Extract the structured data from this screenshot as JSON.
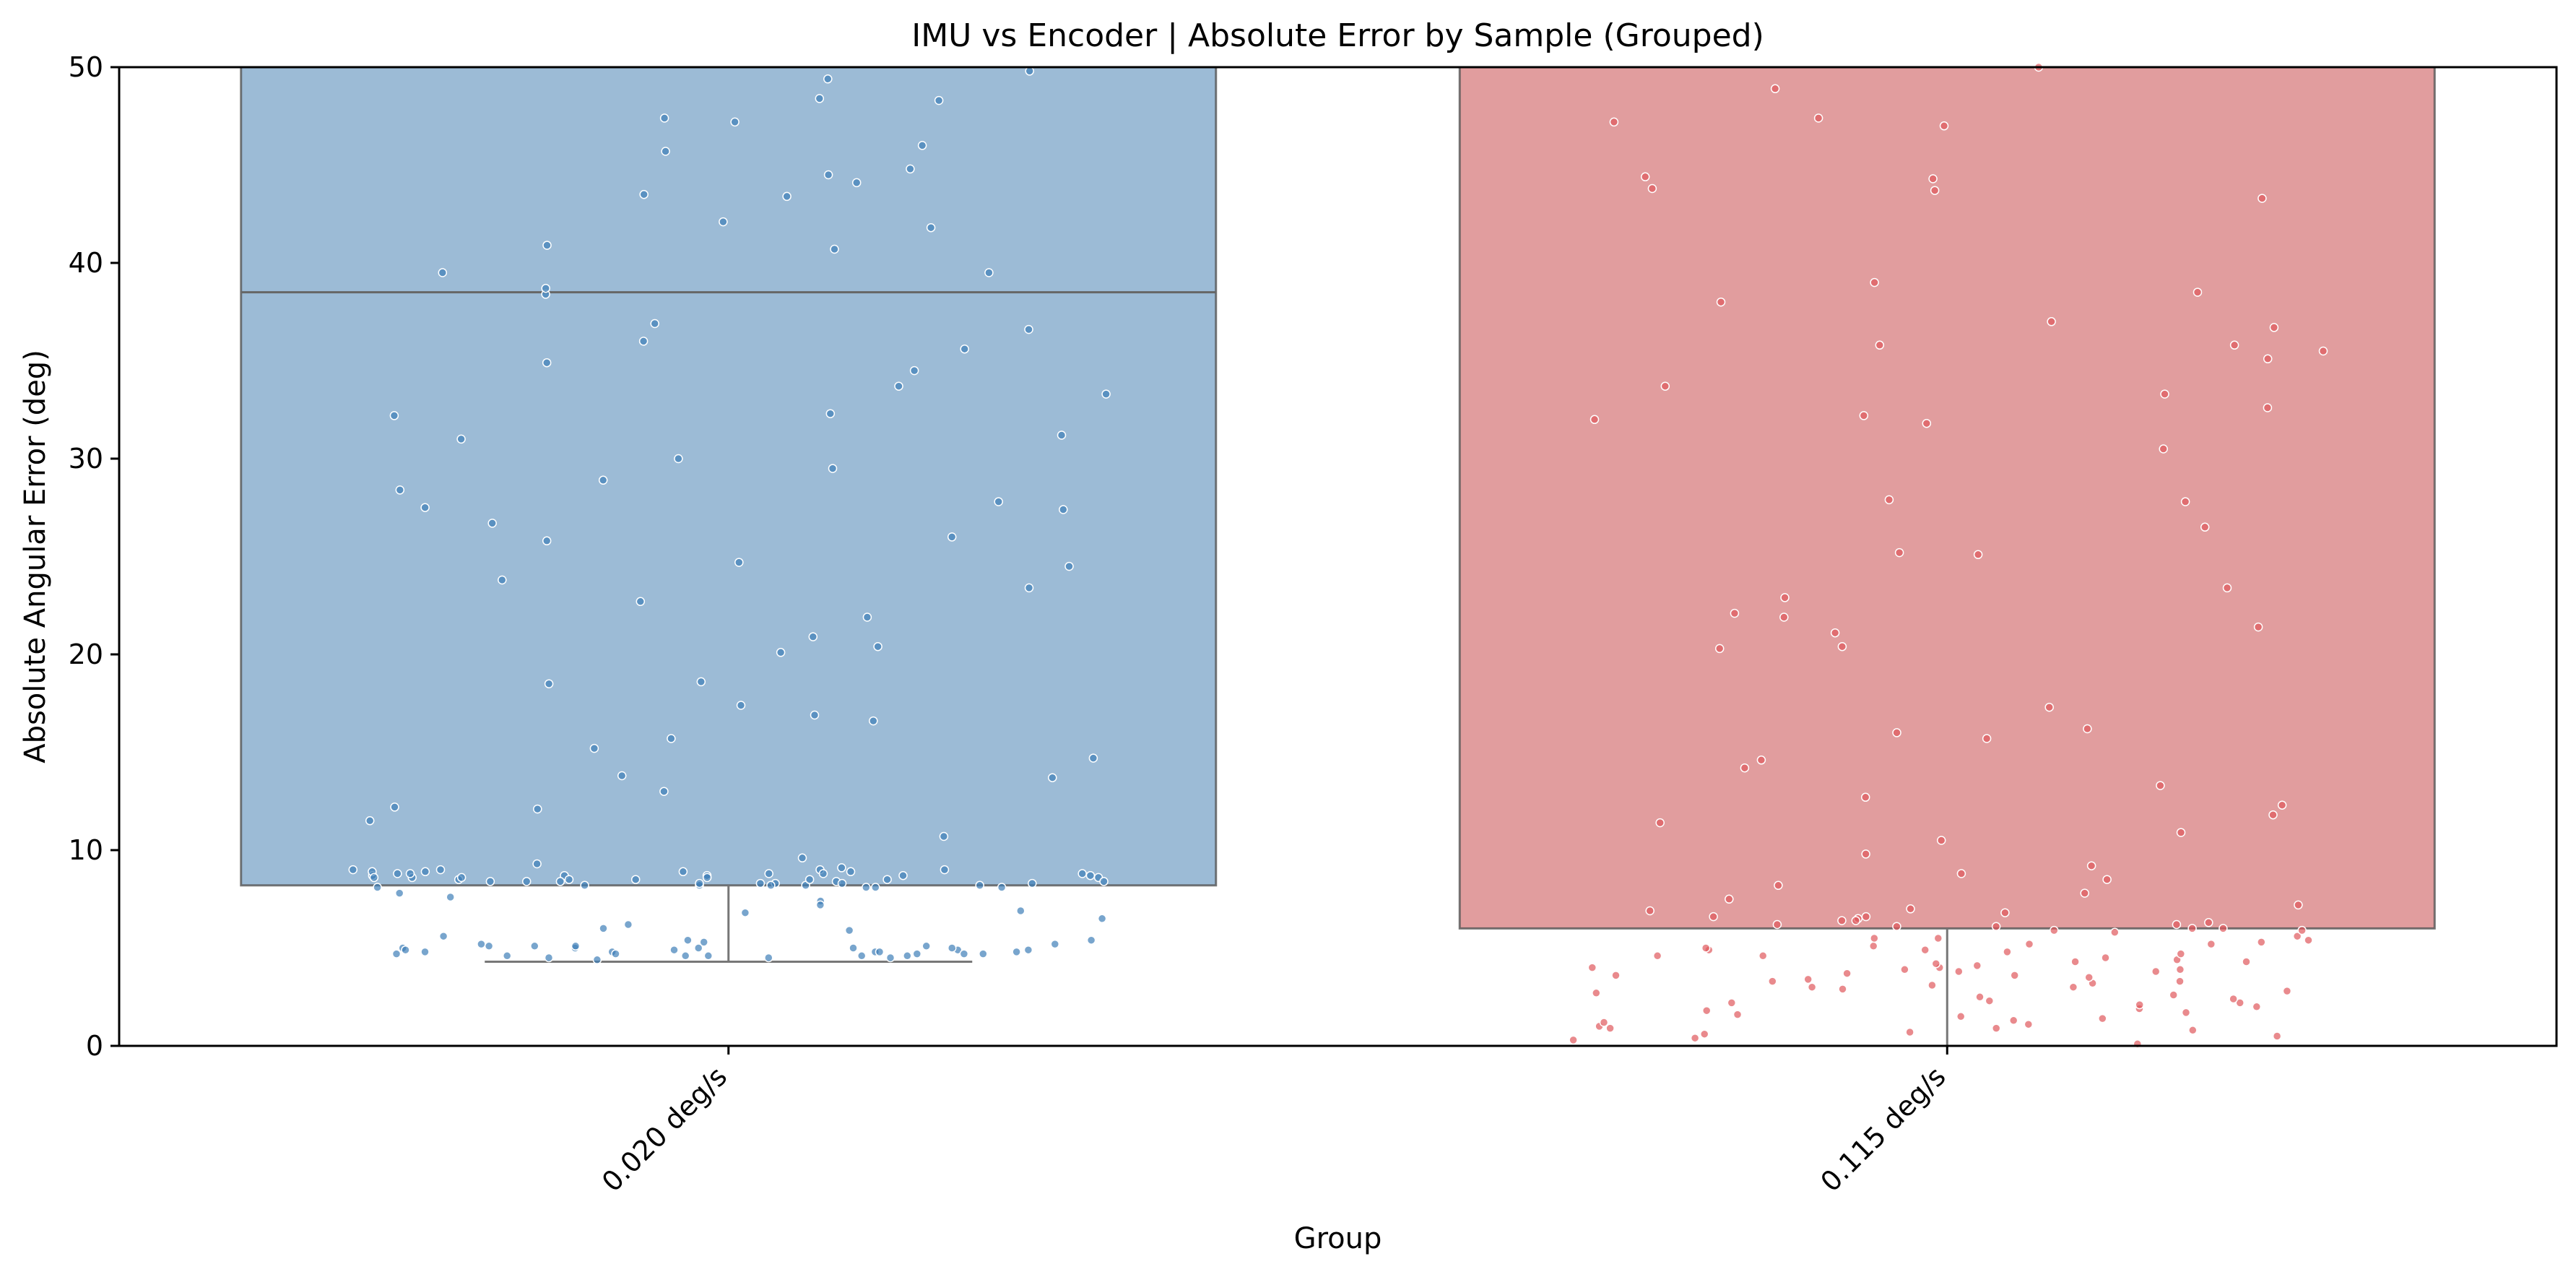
{
  "chart_data": {
    "type": "box",
    "title": "IMU vs Encoder | Absolute Error by Sample (Grouped)",
    "xlabel": "Group",
    "ylabel": "Absolute Angular Error (deg)",
    "ylim": [
      0,
      50
    ],
    "yticks": [
      0,
      10,
      20,
      30,
      40,
      50
    ],
    "grid": false,
    "categories": [
      "0.020 deg/s",
      "0.115 deg/s"
    ],
    "boxes": [
      {
        "category": "0.020 deg/s",
        "color": "#4a83b4",
        "whisker_low": 4.3,
        "q1": 8.2,
        "median": 38.5,
        "q3": 50,
        "whisker_high": 50
      },
      {
        "category": "0.115 deg/s",
        "color": "#c84c4e",
        "whisker_low": 0.0,
        "q1": 6.0,
        "median": 50,
        "q3": 50,
        "whisker_high": 50
      }
    ],
    "points": [
      {
        "category": "0.020 deg/s",
        "color": "#3f7fb8",
        "values": [
          4.5,
          4.6,
          4.7,
          4.8,
          4.9,
          5.0,
          5.1,
          5.2,
          4.5,
          4.6,
          4.8,
          5.0,
          4.7,
          4.9,
          5.1,
          4.6,
          4.8,
          5.0,
          4.7,
          5.2,
          4.4,
          4.9,
          5.3,
          4.6,
          4.8,
          5.0,
          4.5,
          5.1,
          4.7,
          4.9,
          5.4,
          4.6,
          4.8,
          5.0,
          4.7,
          5.1,
          7.4,
          6.8,
          5.9,
          6.2,
          7.6,
          6.9,
          5.6,
          7.2,
          6.0,
          7.8,
          5.4,
          6.5,
          8.1,
          8.2,
          8.3,
          8.4,
          8.5,
          8.6,
          8.7,
          8.8,
          8.9,
          9.0,
          8.1,
          8.2,
          8.3,
          8.4,
          8.5,
          8.6,
          8.7,
          8.8,
          8.9,
          9.0,
          8.1,
          8.3,
          8.5,
          8.7,
          8.9,
          8.2,
          8.4,
          8.6,
          8.8,
          9.0,
          8.1,
          8.3,
          8.5,
          8.7,
          8.9,
          8.2,
          8.4,
          8.6,
          8.8,
          9.1,
          8.2,
          8.5,
          8.8,
          9.3,
          9.6,
          8.4,
          8.7,
          9.0,
          8.3,
          8.6,
          10.7,
          11.5,
          12.1,
          12.2,
          13.0,
          13.7,
          13.8,
          14.7,
          15.2,
          15.7,
          16.6,
          16.9,
          17.4,
          18.5,
          18.6,
          20.1,
          20.4,
          20.9,
          21.9,
          22.7,
          23.4,
          23.8,
          24.5,
          24.7,
          25.8,
          26.0,
          26.7,
          27.4,
          27.5,
          27.8,
          28.4,
          28.9,
          29.5,
          30.0,
          31.0,
          31.2,
          32.2,
          32.3,
          33.3,
          33.7,
          34.5,
          34.9,
          35.6,
          36.0,
          36.6,
          36.9,
          38.4,
          38.7,
          39.5,
          39.5,
          40.7,
          40.9,
          41.8,
          42.1,
          43.4,
          43.5,
          44.1,
          44.5,
          44.8,
          45.7,
          46.0,
          47.2,
          47.4,
          48.3,
          48.4,
          49.4,
          49.8
        ]
      },
      {
        "category": "0.115 deg/s",
        "color": "#e0585c",
        "values": [
          0.1,
          0.3,
          0.4,
          0.5,
          0.7,
          0.8,
          0.9,
          1.0,
          1.1,
          1.2,
          1.4,
          1.6,
          1.7,
          1.9,
          2.0,
          2.2,
          2.3,
          2.5,
          2.6,
          2.8,
          2.9,
          3.0,
          3.1,
          3.2,
          3.3,
          3.4,
          3.5,
          3.6,
          3.7,
          3.8,
          3.9,
          4.0,
          4.1,
          4.2,
          4.3,
          4.4,
          4.5,
          4.6,
          4.7,
          4.8,
          4.9,
          5.0,
          5.1,
          5.2,
          5.3,
          5.4,
          5.5,
          5.6,
          2.1,
          3.3,
          4.6,
          1.3,
          2.7,
          3.9,
          0.6,
          5.2,
          3.6,
          2.4,
          4.3,
          1.8,
          3.0,
          4.9,
          0.9,
          2.2,
          3.8,
          5.5,
          1.5,
          4.0,
          5.8,
          5.9,
          6.0,
          6.1,
          6.2,
          6.3,
          6.4,
          6.5,
          6.6,
          6.8,
          7.0,
          7.2,
          7.5,
          5.9,
          6.0,
          6.1,
          6.2,
          6.4,
          6.6,
          6.9,
          7.8,
          8.2,
          8.5,
          8.8,
          9.2,
          9.8,
          10.5,
          10.9,
          11.4,
          11.8,
          12.3,
          12.7,
          13.3,
          14.2,
          14.6,
          15.7,
          16.0,
          16.2,
          17.3,
          20.3,
          20.4,
          21.1,
          21.4,
          21.9,
          22.1,
          22.9,
          23.4,
          25.1,
          25.2,
          26.5,
          27.8,
          27.9,
          30.5,
          31.8,
          32.0,
          32.2,
          32.6,
          33.3,
          33.7,
          35.1,
          35.5,
          35.8,
          35.8,
          36.7,
          37.0,
          38.0,
          38.5,
          39.0,
          43.3,
          43.7,
          43.8,
          44.3,
          44.4,
          47.0,
          47.2,
          47.4,
          48.9,
          50.0
        ]
      }
    ]
  }
}
